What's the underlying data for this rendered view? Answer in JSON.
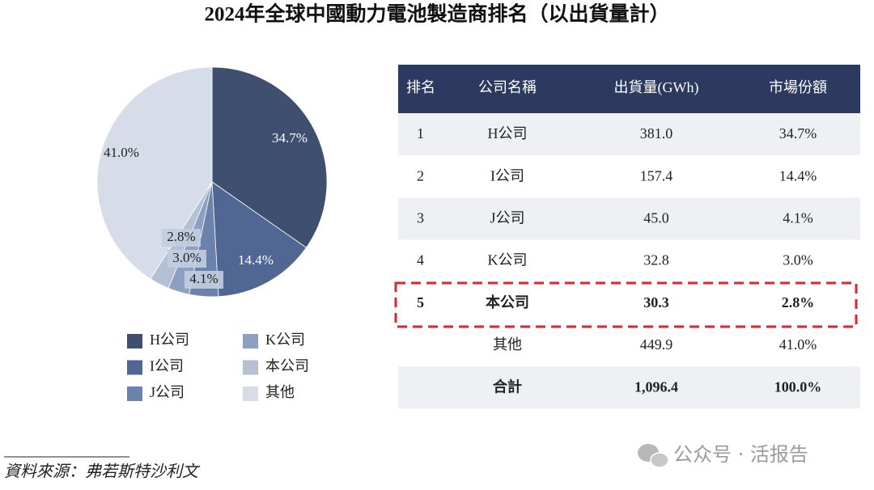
{
  "chart_data": {
    "type": "pie",
    "title": "2024年全球中國動力電池製造商排名（以出貨量計）",
    "categories": [
      "H公司",
      "I公司",
      "J公司",
      "K公司",
      "本公司",
      "其他"
    ],
    "values": [
      34.7,
      14.4,
      4.1,
      3.0,
      2.8,
      41.0
    ],
    "value_labels": [
      "34.7%",
      "14.4%",
      "4.1%",
      "3.0%",
      "2.8%",
      "41.0%"
    ],
    "colors": [
      "#3e4f6f",
      "#4f6792",
      "#6b82ab",
      "#8d9fc2",
      "#b4c1d5",
      "#d6dde9"
    ]
  },
  "table": {
    "header": [
      "排名",
      "公司名稱",
      "出貨量(GWh)",
      "市場份額"
    ],
    "rows": [
      {
        "rank": "1",
        "company": "H公司",
        "shipments": "381.0",
        "share": "34.7%"
      },
      {
        "rank": "2",
        "company": "I公司",
        "shipments": "157.4",
        "share": "14.4%"
      },
      {
        "rank": "3",
        "company": "J公司",
        "shipments": "45.0",
        "share": "4.1%"
      },
      {
        "rank": "4",
        "company": "K公司",
        "shipments": "32.8",
        "share": "3.0%"
      },
      {
        "rank": "5",
        "company": "本公司",
        "shipments": "30.3",
        "share": "2.8%"
      },
      {
        "company": "其他",
        "shipments": "449.9",
        "share": "41.0%"
      },
      {
        "company": "合計",
        "shipments": "1,096.4",
        "share": "100.0%"
      }
    ]
  },
  "source": "資料來源：弗若斯特沙利文",
  "watermark": "公众号 · 活报告"
}
